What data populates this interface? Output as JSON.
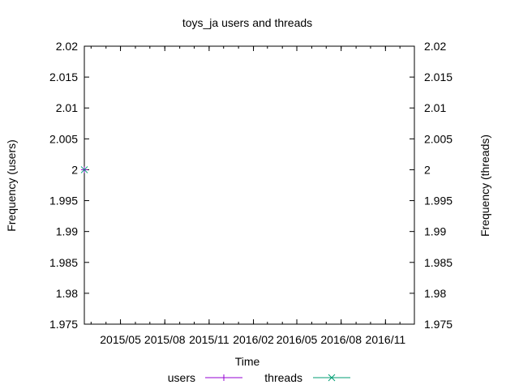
{
  "chart_data": {
    "type": "line",
    "title": "toys_ja users and threads",
    "xlabel": "Time",
    "ylabel_left": "Frequency (users)",
    "ylabel_right": "Frequency (threads)",
    "x_ticks": [
      "2015/05",
      "2015/08",
      "2015/11",
      "2016/02",
      "2016/05",
      "2016/08",
      "2016/11"
    ],
    "y_ticks": [
      "1.975",
      "1.98",
      "1.985",
      "1.99",
      "1.995",
      "2",
      "2.005",
      "2.01",
      "2.015",
      "2.02"
    ],
    "ylim": [
      1.975,
      2.02
    ],
    "xlim": [
      "2015-02-15",
      "2016-12-31"
    ],
    "grid": false,
    "legend_position": "bottom",
    "series": [
      {
        "name": "users",
        "color": "#9400d3",
        "marker": "plus",
        "points": [
          {
            "x": "2015-02-15",
            "y": 2
          }
        ]
      },
      {
        "name": "threads",
        "color": "#009e73",
        "marker": "cross",
        "points": [
          {
            "x": "2015-02-15",
            "y": 2
          }
        ]
      }
    ]
  }
}
